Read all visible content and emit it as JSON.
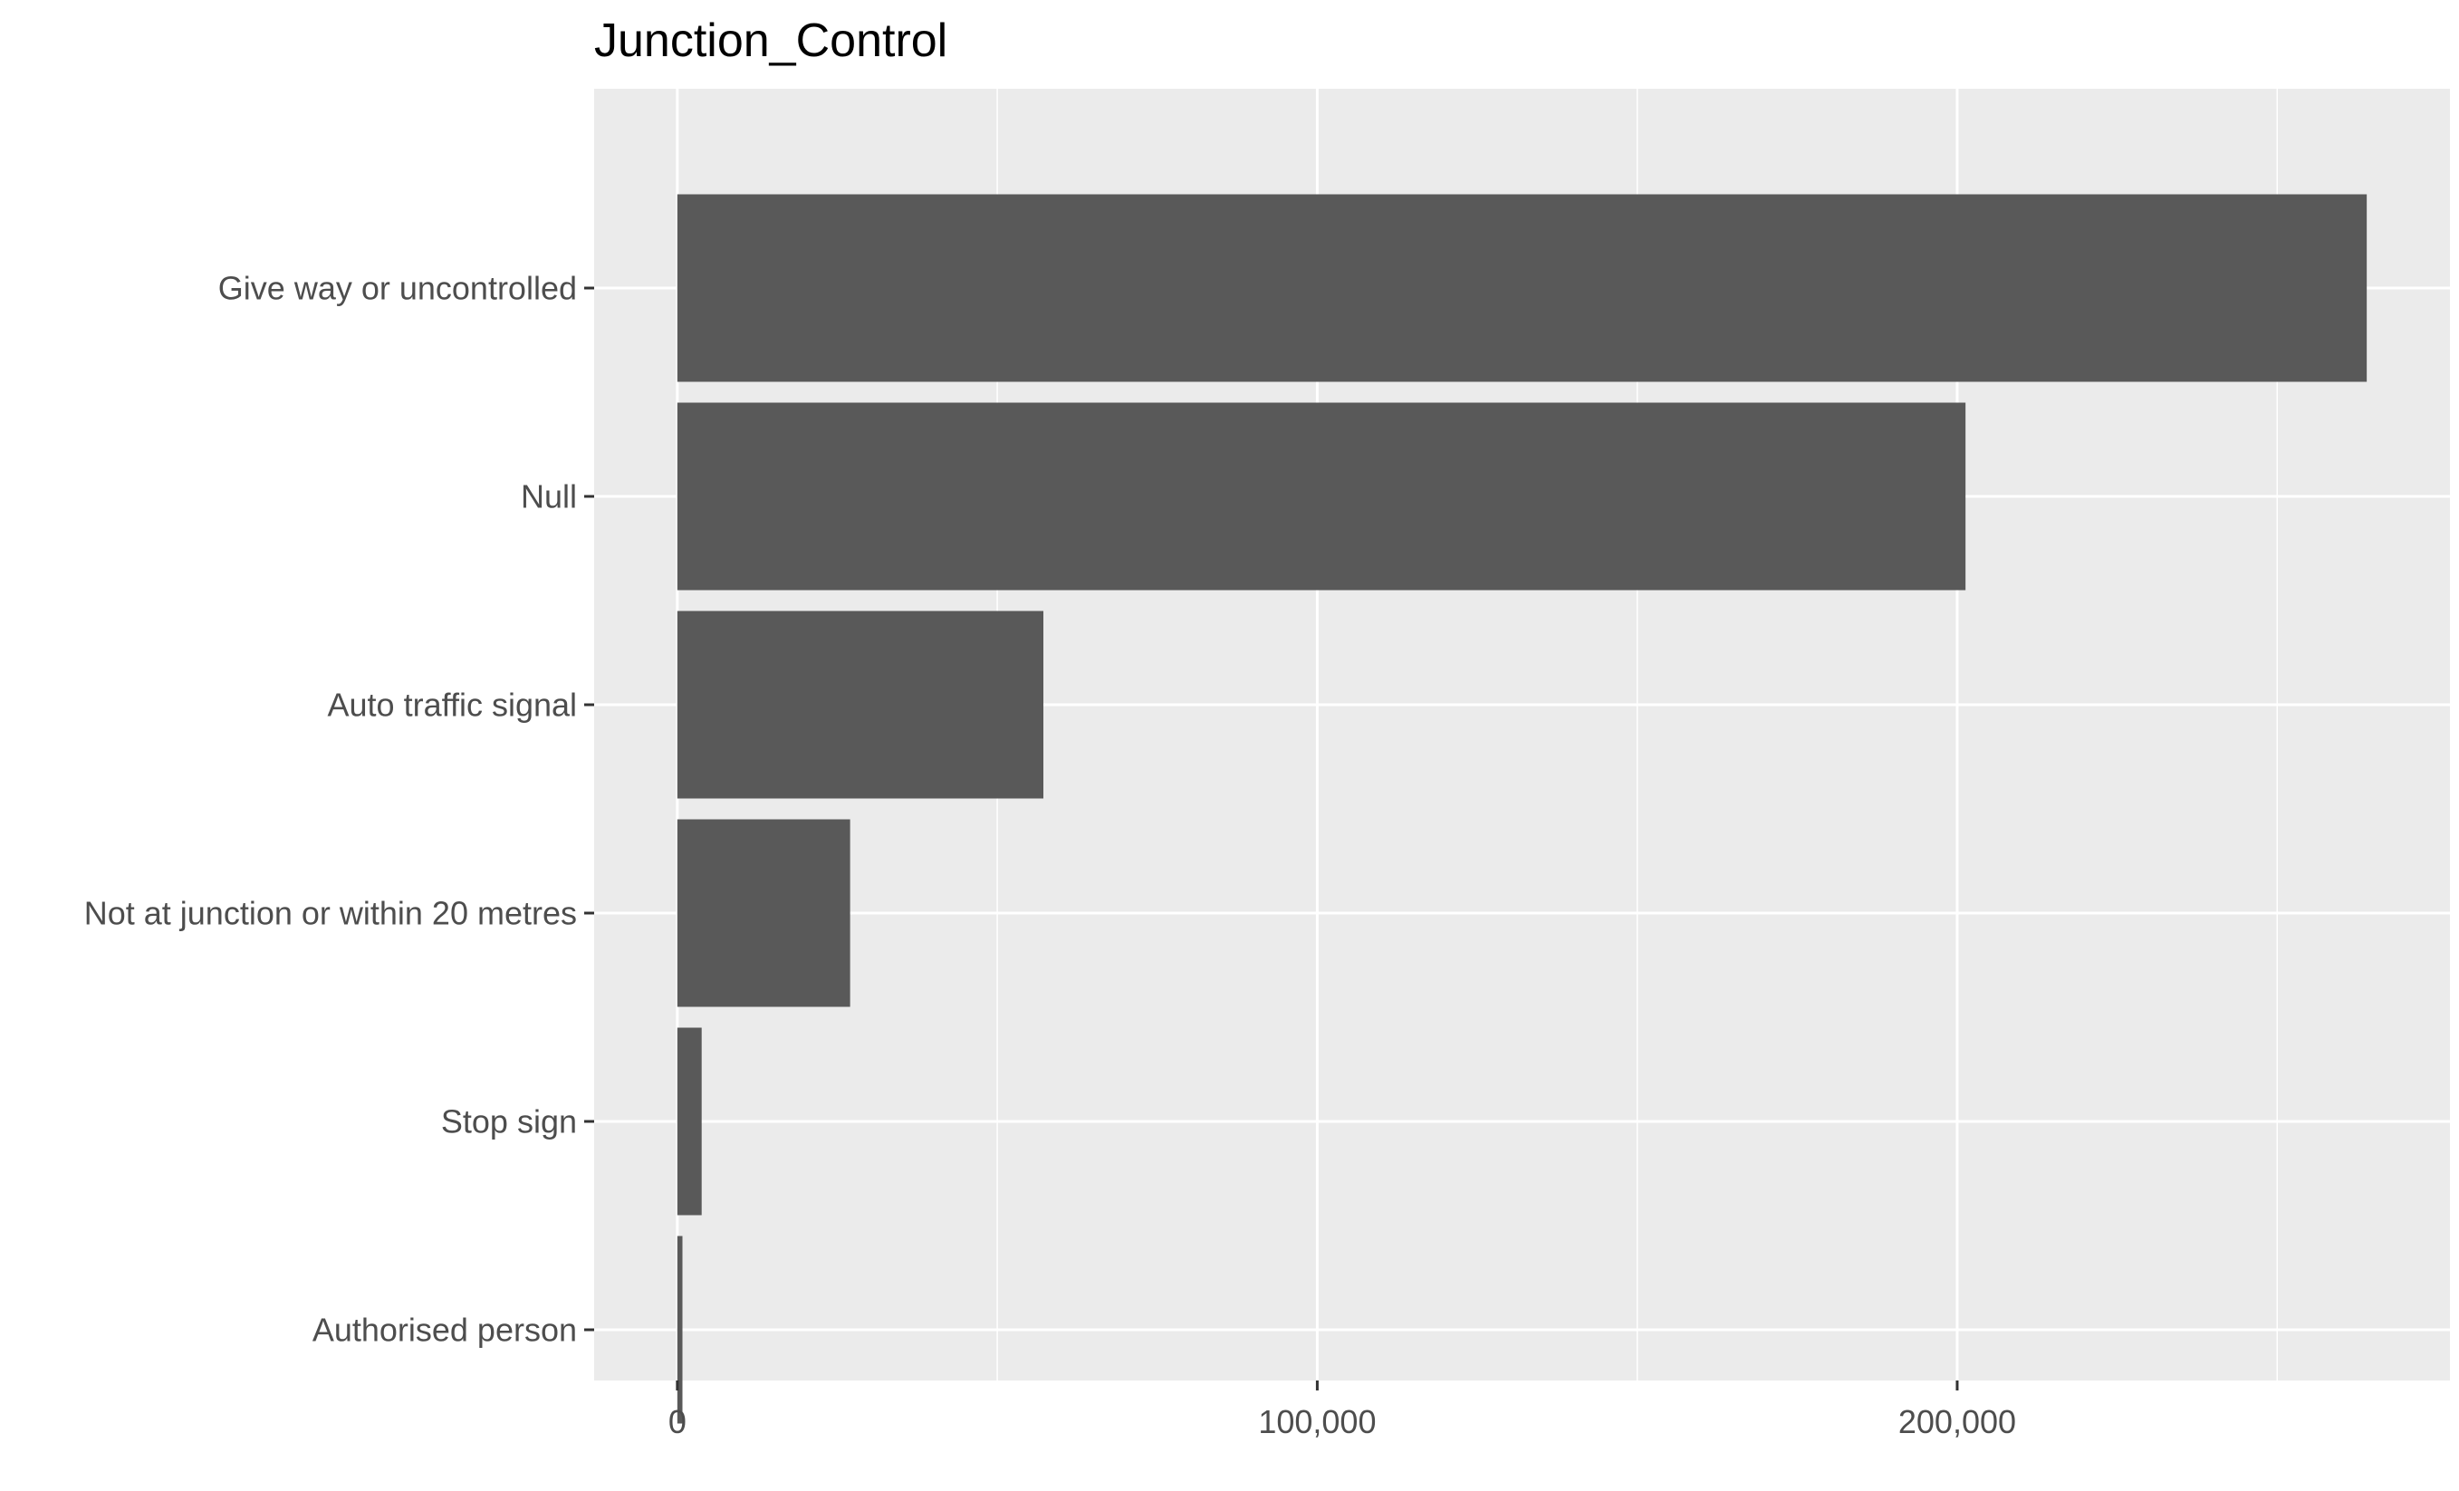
{
  "chart_data": {
    "type": "bar",
    "orientation": "horizontal",
    "title": "Junction_Control",
    "xlabel": "",
    "ylabel": "",
    "categories": [
      "Give way or uncontrolled",
      "Null",
      "Auto traffic signal",
      "Not at junction or within 20 metres",
      "Stop sign",
      "Authorised person"
    ],
    "values": [
      264000,
      201300,
      57200,
      27000,
      3800,
      800
    ],
    "xlim": [
      -13000,
      277000
    ],
    "x_ticks": [
      0,
      100000,
      200000
    ],
    "x_tick_labels": [
      "0",
      "100,000",
      "200,000"
    ],
    "x_minor_ticks": [
      50000,
      150000,
      250000
    ],
    "grid": true,
    "legend": "none",
    "colors": {
      "panel_background": "#EBEBEB",
      "grid_line": "#FFFFFF",
      "bar_fill": "#595959",
      "axis_text": "#4D4D4D",
      "tick_mark": "#333333",
      "title_text": "#000000"
    }
  }
}
